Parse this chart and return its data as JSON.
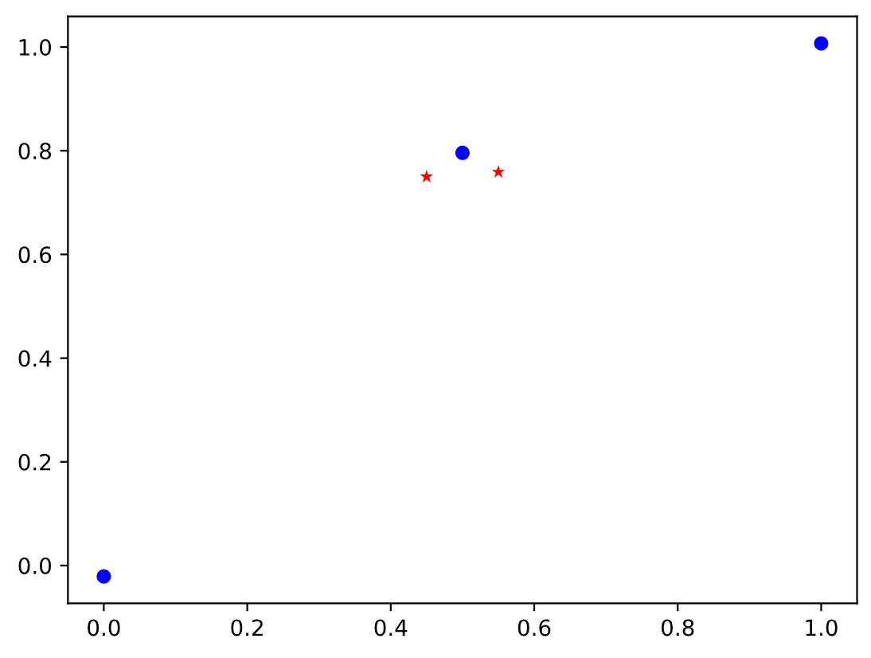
{
  "chart_data": {
    "type": "scatter",
    "series": [
      {
        "color": "#0000ff",
        "marker": "circle",
        "x": [
          0.0,
          0.5,
          1.0
        ],
        "values": [
          -0.021,
          0.796,
          1.007
        ]
      },
      {
        "color": "#ff0000",
        "marker": "star",
        "x": [
          0.45,
          0.55
        ],
        "values": [
          0.75,
          0.759
        ]
      }
    ],
    "xlim": [
      -0.05,
      1.05
    ],
    "ylim": [
      -0.073,
      1.059
    ],
    "xticks": [
      {
        "value": 0,
        "label": "0.0"
      },
      0.2,
      0.4,
      0.6,
      0.8,
      {
        "value": 1,
        "label": "1.0"
      }
    ],
    "yticks": [
      {
        "value": 0,
        "label": "0.0"
      },
      0.2,
      0.4,
      0.6,
      0.8,
      {
        "value": 1,
        "label": "1.0"
      }
    ]
  }
}
